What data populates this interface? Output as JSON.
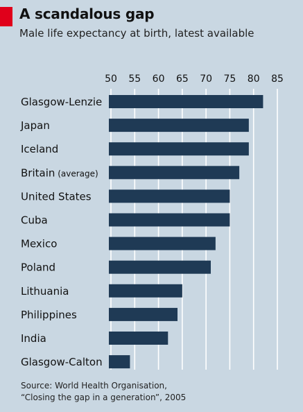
{
  "title": "A scandalous gap",
  "subtitle": "Male life expectancy at birth, latest available",
  "source_line1": "Source: World Health Organisation,",
  "source_line2": "“Closing the gap in a generation”, 2005",
  "colors": {
    "bar": "#1f3a55",
    "background": "#c9d7e2",
    "gridline": "#ffffff",
    "title_mark": "#e0001b"
  },
  "chart_data": {
    "type": "bar",
    "orientation": "horizontal",
    "title": "A scandalous gap",
    "subtitle": "Male life expectancy at birth, latest available",
    "xlim": [
      50,
      85
    ],
    "ticks": [
      50,
      55,
      60,
      65,
      70,
      75,
      80,
      85
    ],
    "grid": true,
    "categories": [
      {
        "label": "Glasgow-Lenzie",
        "note": ""
      },
      {
        "label": "Japan",
        "note": ""
      },
      {
        "label": "Iceland",
        "note": ""
      },
      {
        "label": "Britain",
        "note": "(average)"
      },
      {
        "label": "United States",
        "note": ""
      },
      {
        "label": "Cuba",
        "note": ""
      },
      {
        "label": "Mexico",
        "note": ""
      },
      {
        "label": "Poland",
        "note": ""
      },
      {
        "label": "Lithuania",
        "note": ""
      },
      {
        "label": "Philippines",
        "note": ""
      },
      {
        "label": "India",
        "note": ""
      },
      {
        "label": "Glasgow-Calton",
        "note": ""
      }
    ],
    "values": [
      82,
      79,
      79,
      77,
      75,
      75,
      72,
      71,
      65,
      64,
      62,
      54
    ]
  }
}
